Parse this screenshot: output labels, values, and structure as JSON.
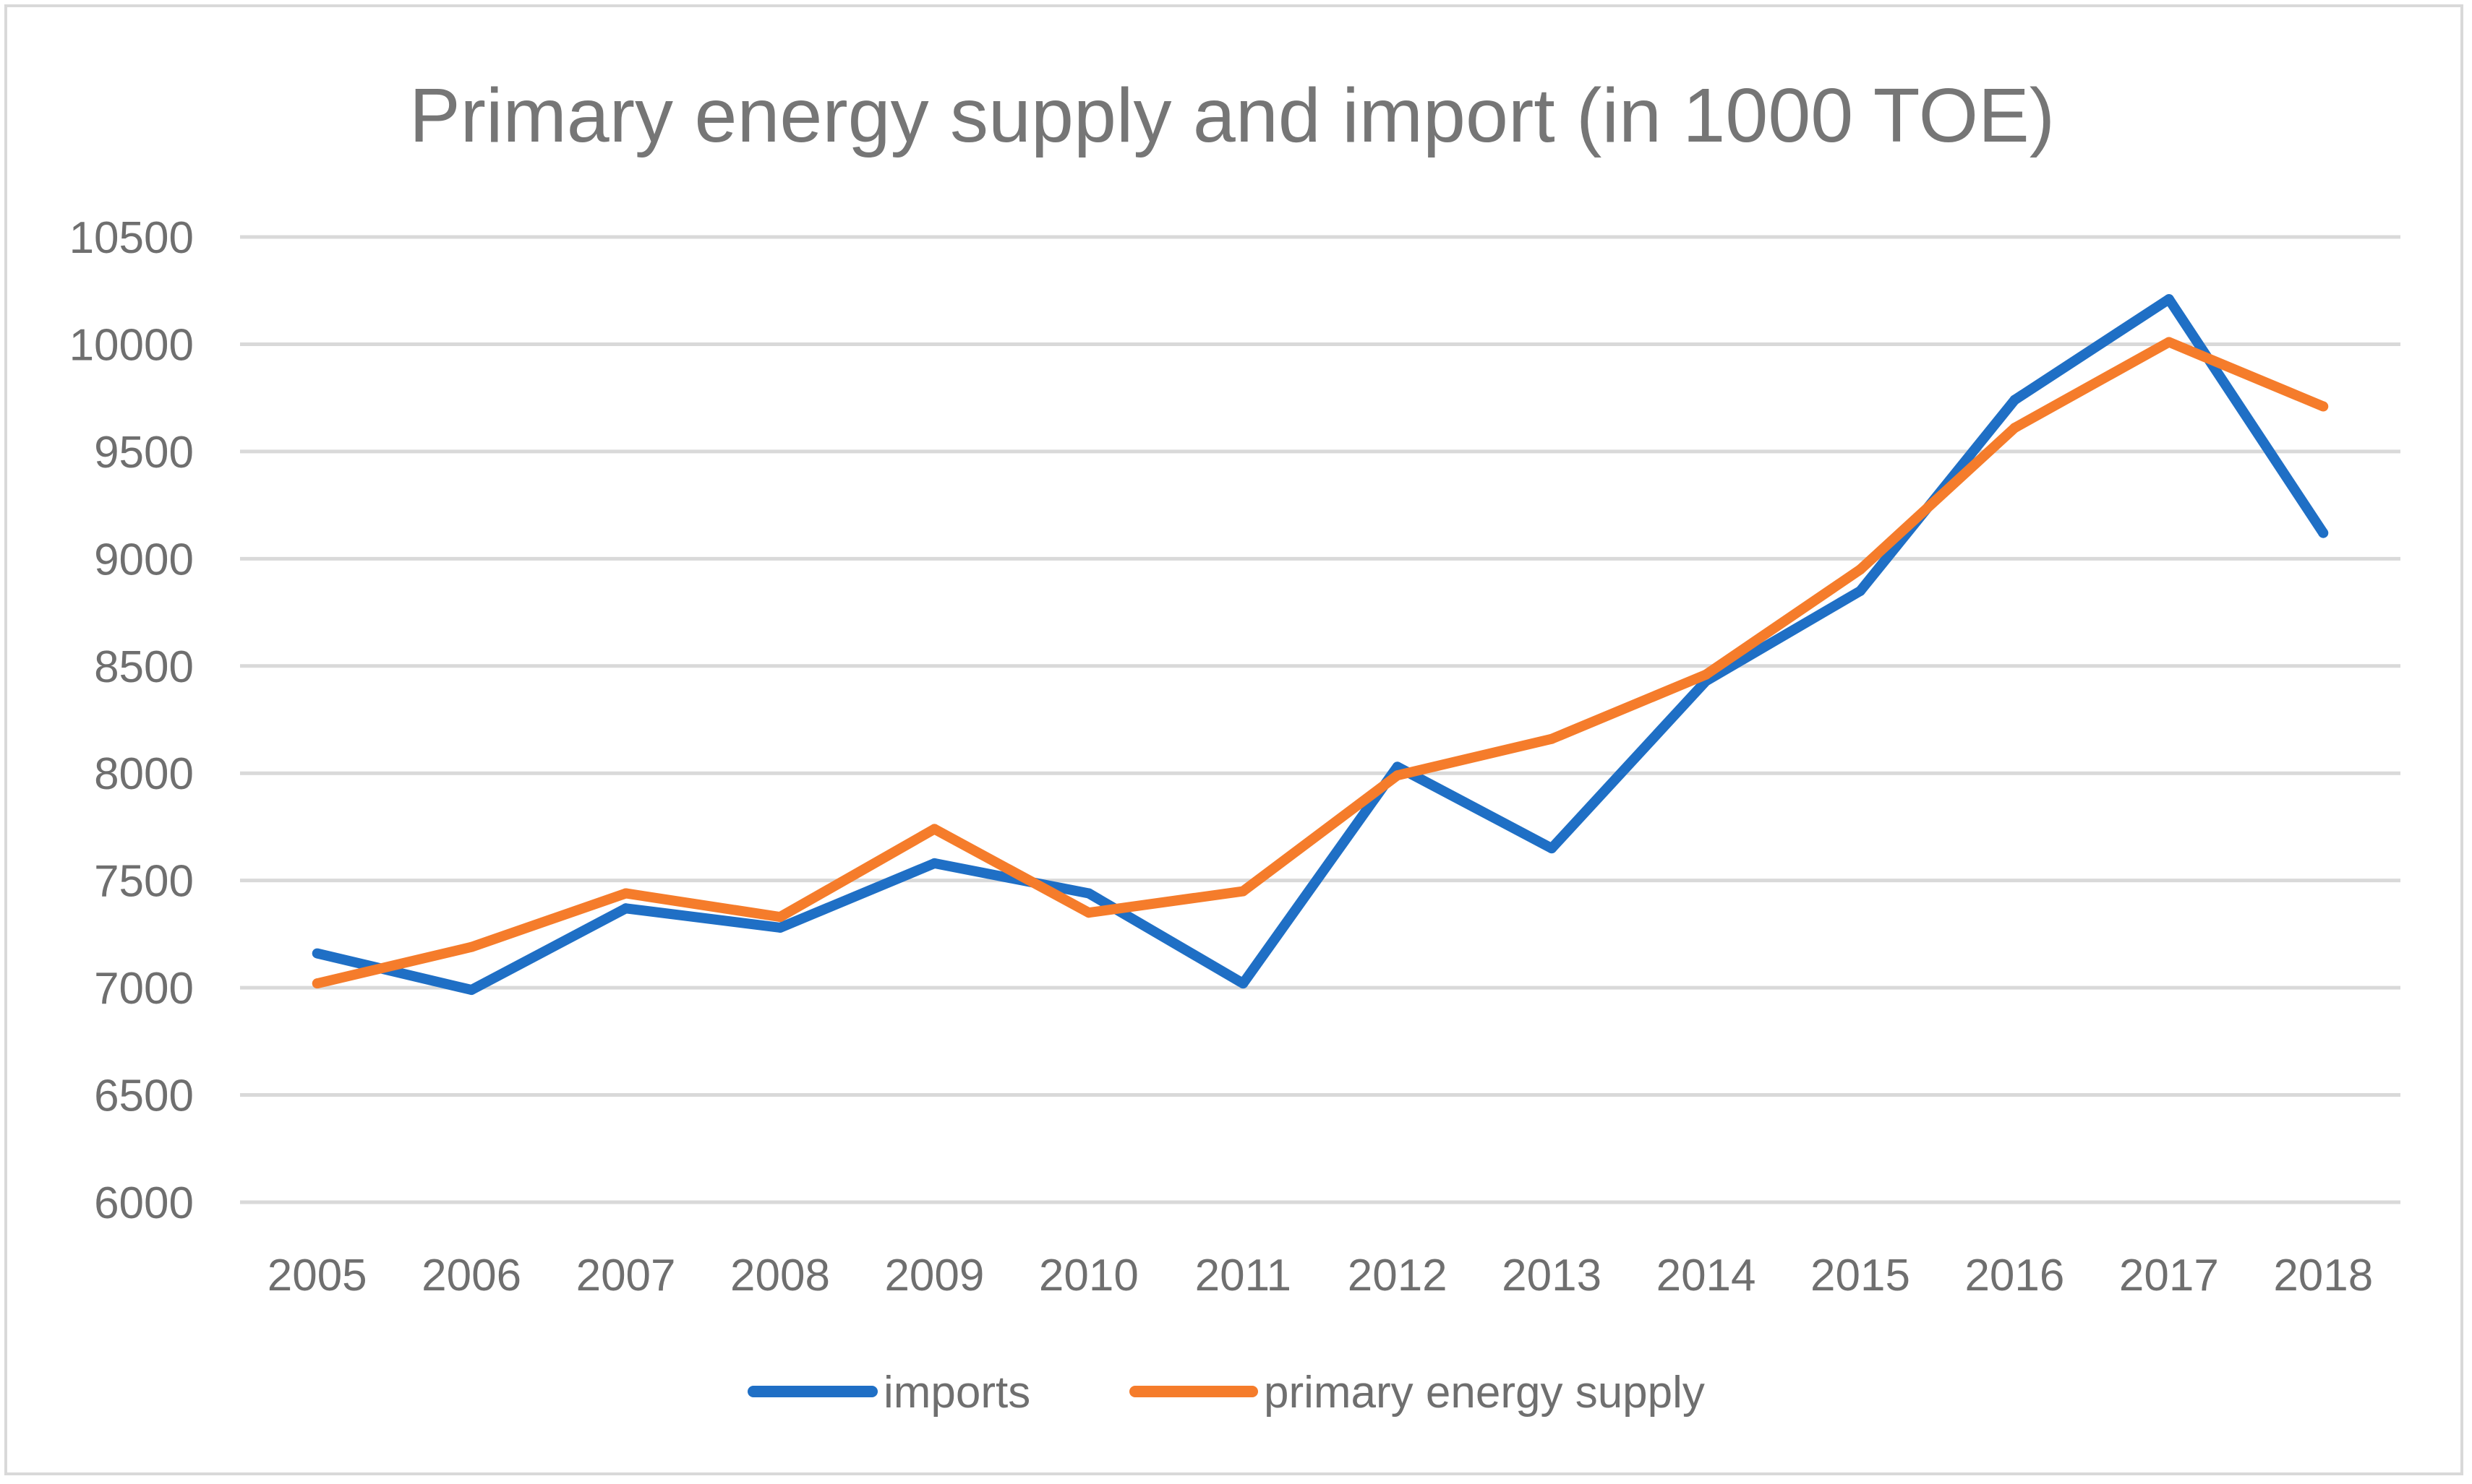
{
  "chart_data": {
    "type": "line",
    "title": "Primary energy supply and import (in 1000 TOE)",
    "xlabel": "",
    "ylabel": "",
    "categories": [
      "2005",
      "2006",
      "2007",
      "2008",
      "2009",
      "2010",
      "2011",
      "2012",
      "2013",
      "2014",
      "2015",
      "2016",
      "2017",
      "2018"
    ],
    "ylim": [
      6000,
      10500
    ],
    "yticks": [
      6000,
      6500,
      7000,
      7500,
      8000,
      8500,
      9000,
      9500,
      10000,
      10500
    ],
    "grid": true,
    "legend_position": "bottom",
    "series": [
      {
        "name": "imports",
        "color": "#1f6fc5",
        "values": [
          7160,
          6990,
          7370,
          7280,
          7580,
          7440,
          7020,
          8030,
          7650,
          8430,
          8850,
          9740,
          10210,
          9120
        ]
      },
      {
        "name": "primary energy supply",
        "color": "#f57c2b",
        "values": [
          7020,
          7190,
          7440,
          7330,
          7740,
          7350,
          7450,
          7990,
          8160,
          8460,
          8950,
          9610,
          10010,
          9710
        ]
      }
    ]
  }
}
